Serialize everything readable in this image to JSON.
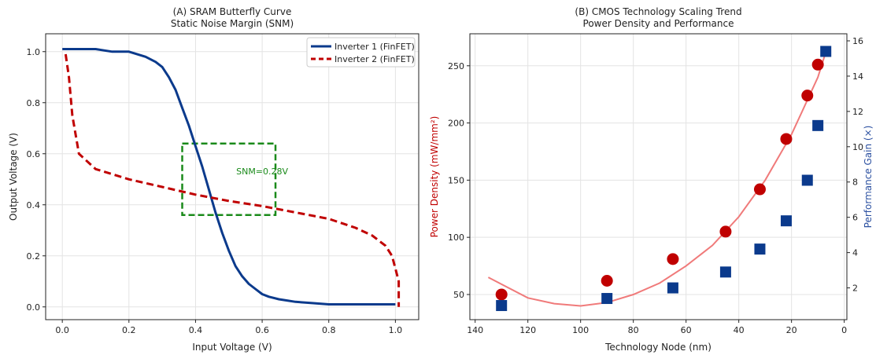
{
  "chart_data": [
    {
      "type": "line",
      "title": "(A) SRAM Butterfly Curve",
      "subtitle": "Static Noise Margin (SNM)",
      "xlabel": "Input Voltage (V)",
      "ylabel": "Output Voltage (V)",
      "xlim": [
        -0.05,
        1.07
      ],
      "ylim": [
        -0.05,
        1.07
      ],
      "xticks": [
        "0.0",
        "0.2",
        "0.4",
        "0.6",
        "0.8",
        "1.0"
      ],
      "yticks": [
        "0.0",
        "0.2",
        "0.4",
        "0.6",
        "0.8",
        "1.0"
      ],
      "grid": true,
      "legend_position": "top-right",
      "series": [
        {
          "name": "Inverter 1 (FinFET)",
          "color": "#0b3a8c",
          "style": "solid",
          "x": [
            0.0,
            0.02,
            0.05,
            0.1,
            0.15,
            0.2,
            0.25,
            0.28,
            0.3,
            0.32,
            0.34,
            0.36,
            0.38,
            0.4,
            0.42,
            0.44,
            0.46,
            0.48,
            0.5,
            0.52,
            0.54,
            0.56,
            0.58,
            0.6,
            0.62,
            0.65,
            0.7,
            0.75,
            0.8,
            0.85,
            0.9,
            0.95,
            1.0
          ],
          "y": [
            1.01,
            1.01,
            1.01,
            1.01,
            1.0,
            1.0,
            0.98,
            0.96,
            0.94,
            0.9,
            0.85,
            0.78,
            0.71,
            0.63,
            0.55,
            0.46,
            0.37,
            0.29,
            0.22,
            0.16,
            0.12,
            0.09,
            0.07,
            0.05,
            0.04,
            0.03,
            0.02,
            0.015,
            0.01,
            0.01,
            0.01,
            0.01,
            0.01
          ]
        },
        {
          "name": "Inverter 2 (FinFET)",
          "color": "#c00000",
          "style": "dashed",
          "x": [
            0.01,
            0.02,
            0.03,
            0.05,
            0.1,
            0.2,
            0.3,
            0.4,
            0.5,
            0.6,
            0.7,
            0.8,
            0.88,
            0.93,
            0.97,
            0.99,
            1.0,
            1.01,
            1.01,
            1.01,
            1.01
          ],
          "y": [
            0.99,
            0.9,
            0.75,
            0.6,
            0.54,
            0.5,
            0.47,
            0.44,
            0.415,
            0.395,
            0.37,
            0.345,
            0.31,
            0.28,
            0.24,
            0.2,
            0.15,
            0.1,
            0.05,
            0.02,
            0.0
          ]
        }
      ],
      "annotations": [
        {
          "text": "SNM=0.28V",
          "color": "#1a8a1a",
          "x": 0.6,
          "y": 0.52
        },
        {
          "type": "rectangle",
          "style": "dashed",
          "color": "#1a8a1a",
          "x0": 0.36,
          "x1": 0.64,
          "y0": 0.36,
          "y1": 0.64
        }
      ]
    },
    {
      "type": "scatter",
      "title": "(B) CMOS Technology Scaling Trend",
      "subtitle": "Power Density and Performance",
      "xlabel": "Technology Node (nm)",
      "ylabel": "Power Density (mW/mm²)",
      "ylabel_color": "#c00000",
      "y2label": "Performance Gain (×)",
      "y2label_color": "#2a4fa0",
      "x_reversed": true,
      "xlim": [
        142,
        -1
      ],
      "ylim": [
        28,
        278
      ],
      "y2lim": [
        0.2,
        16.4
      ],
      "xticks": [
        "140",
        "120",
        "100",
        "80",
        "60",
        "40",
        "20",
        "0"
      ],
      "yticks": [
        "50",
        "100",
        "150",
        "200",
        "250"
      ],
      "y2ticks": [
        "2",
        "4",
        "6",
        "8",
        "10",
        "12",
        "14",
        "16"
      ],
      "grid": true,
      "series": [
        {
          "axis": "left",
          "marker": "circle",
          "color": "#c00000",
          "x": [
            130,
            90,
            65,
            45,
            32,
            22,
            14,
            10
          ],
          "y": [
            50,
            62,
            81,
            105,
            142,
            186,
            224,
            251
          ]
        },
        {
          "axis": "right",
          "marker": "square",
          "color": "#0b3a8c",
          "x": [
            130,
            90,
            65,
            45,
            32,
            22,
            14,
            10,
            7
          ],
          "y": [
            1.0,
            1.4,
            2.0,
            2.9,
            4.2,
            5.8,
            8.1,
            11.2,
            15.4
          ]
        },
        {
          "axis": "left",
          "type": "line",
          "color": "#f07a7a",
          "x": [
            135,
            120,
            110,
            100,
            90,
            80,
            70,
            60,
            50,
            40,
            30,
            20,
            10,
            7
          ],
          "y": [
            65,
            47,
            42,
            40,
            43,
            50,
            60,
            75,
            93,
            118,
            150,
            190,
            240,
            262
          ]
        }
      ]
    }
  ]
}
